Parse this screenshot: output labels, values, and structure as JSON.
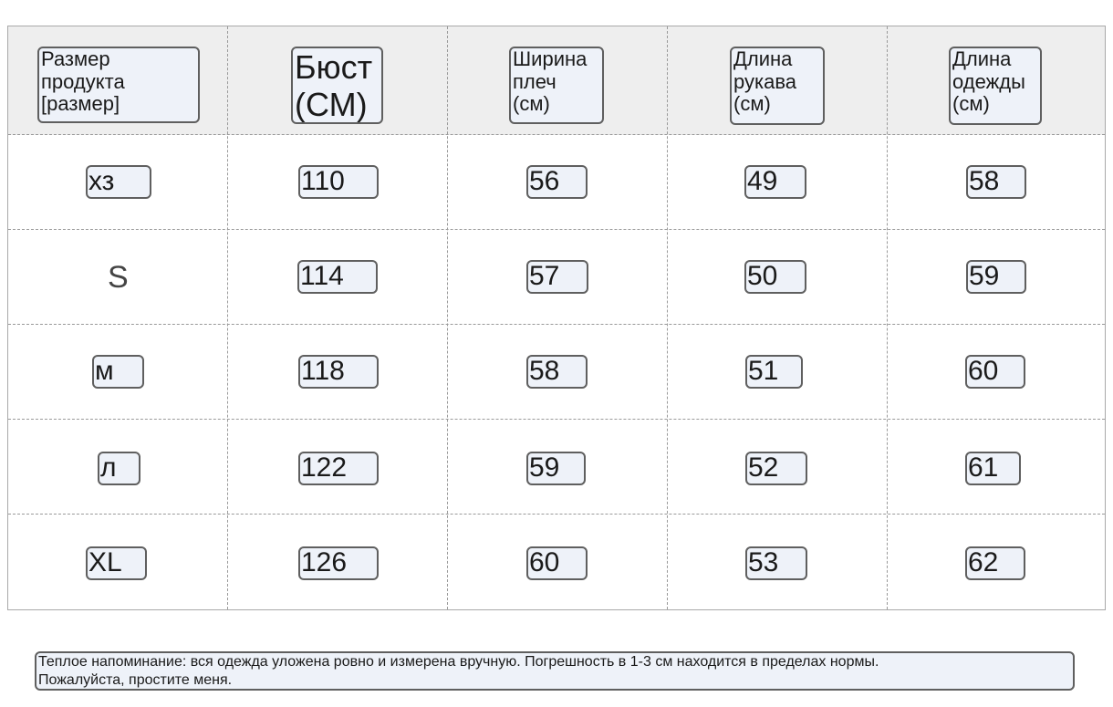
{
  "table": {
    "headers": [
      "Размер\nпродукта\n[размер]",
      "Бюст\n(СМ)",
      "Ширина\nплеч\n(см)",
      "Длина\nрукава\n(см)",
      "Длина\nодежды\n(см)"
    ],
    "rows": [
      [
        "хз",
        "110",
        "56",
        "49",
        "58"
      ],
      [
        "S",
        "114",
        "57",
        "50",
        "59"
      ],
      [
        "м",
        "118",
        "58",
        "51",
        "60"
      ],
      [
        "л",
        "122",
        "59",
        "52",
        "61"
      ],
      [
        "XL",
        "126",
        "60",
        "53",
        "62"
      ]
    ]
  },
  "note": {
    "line1": "Теплое напоминание: вся одежда уложена ровно и измерена вручную. Погрешность в 1-3 см находится в пределах нормы.",
    "line2": "Пожалуйста, простите меня."
  }
}
